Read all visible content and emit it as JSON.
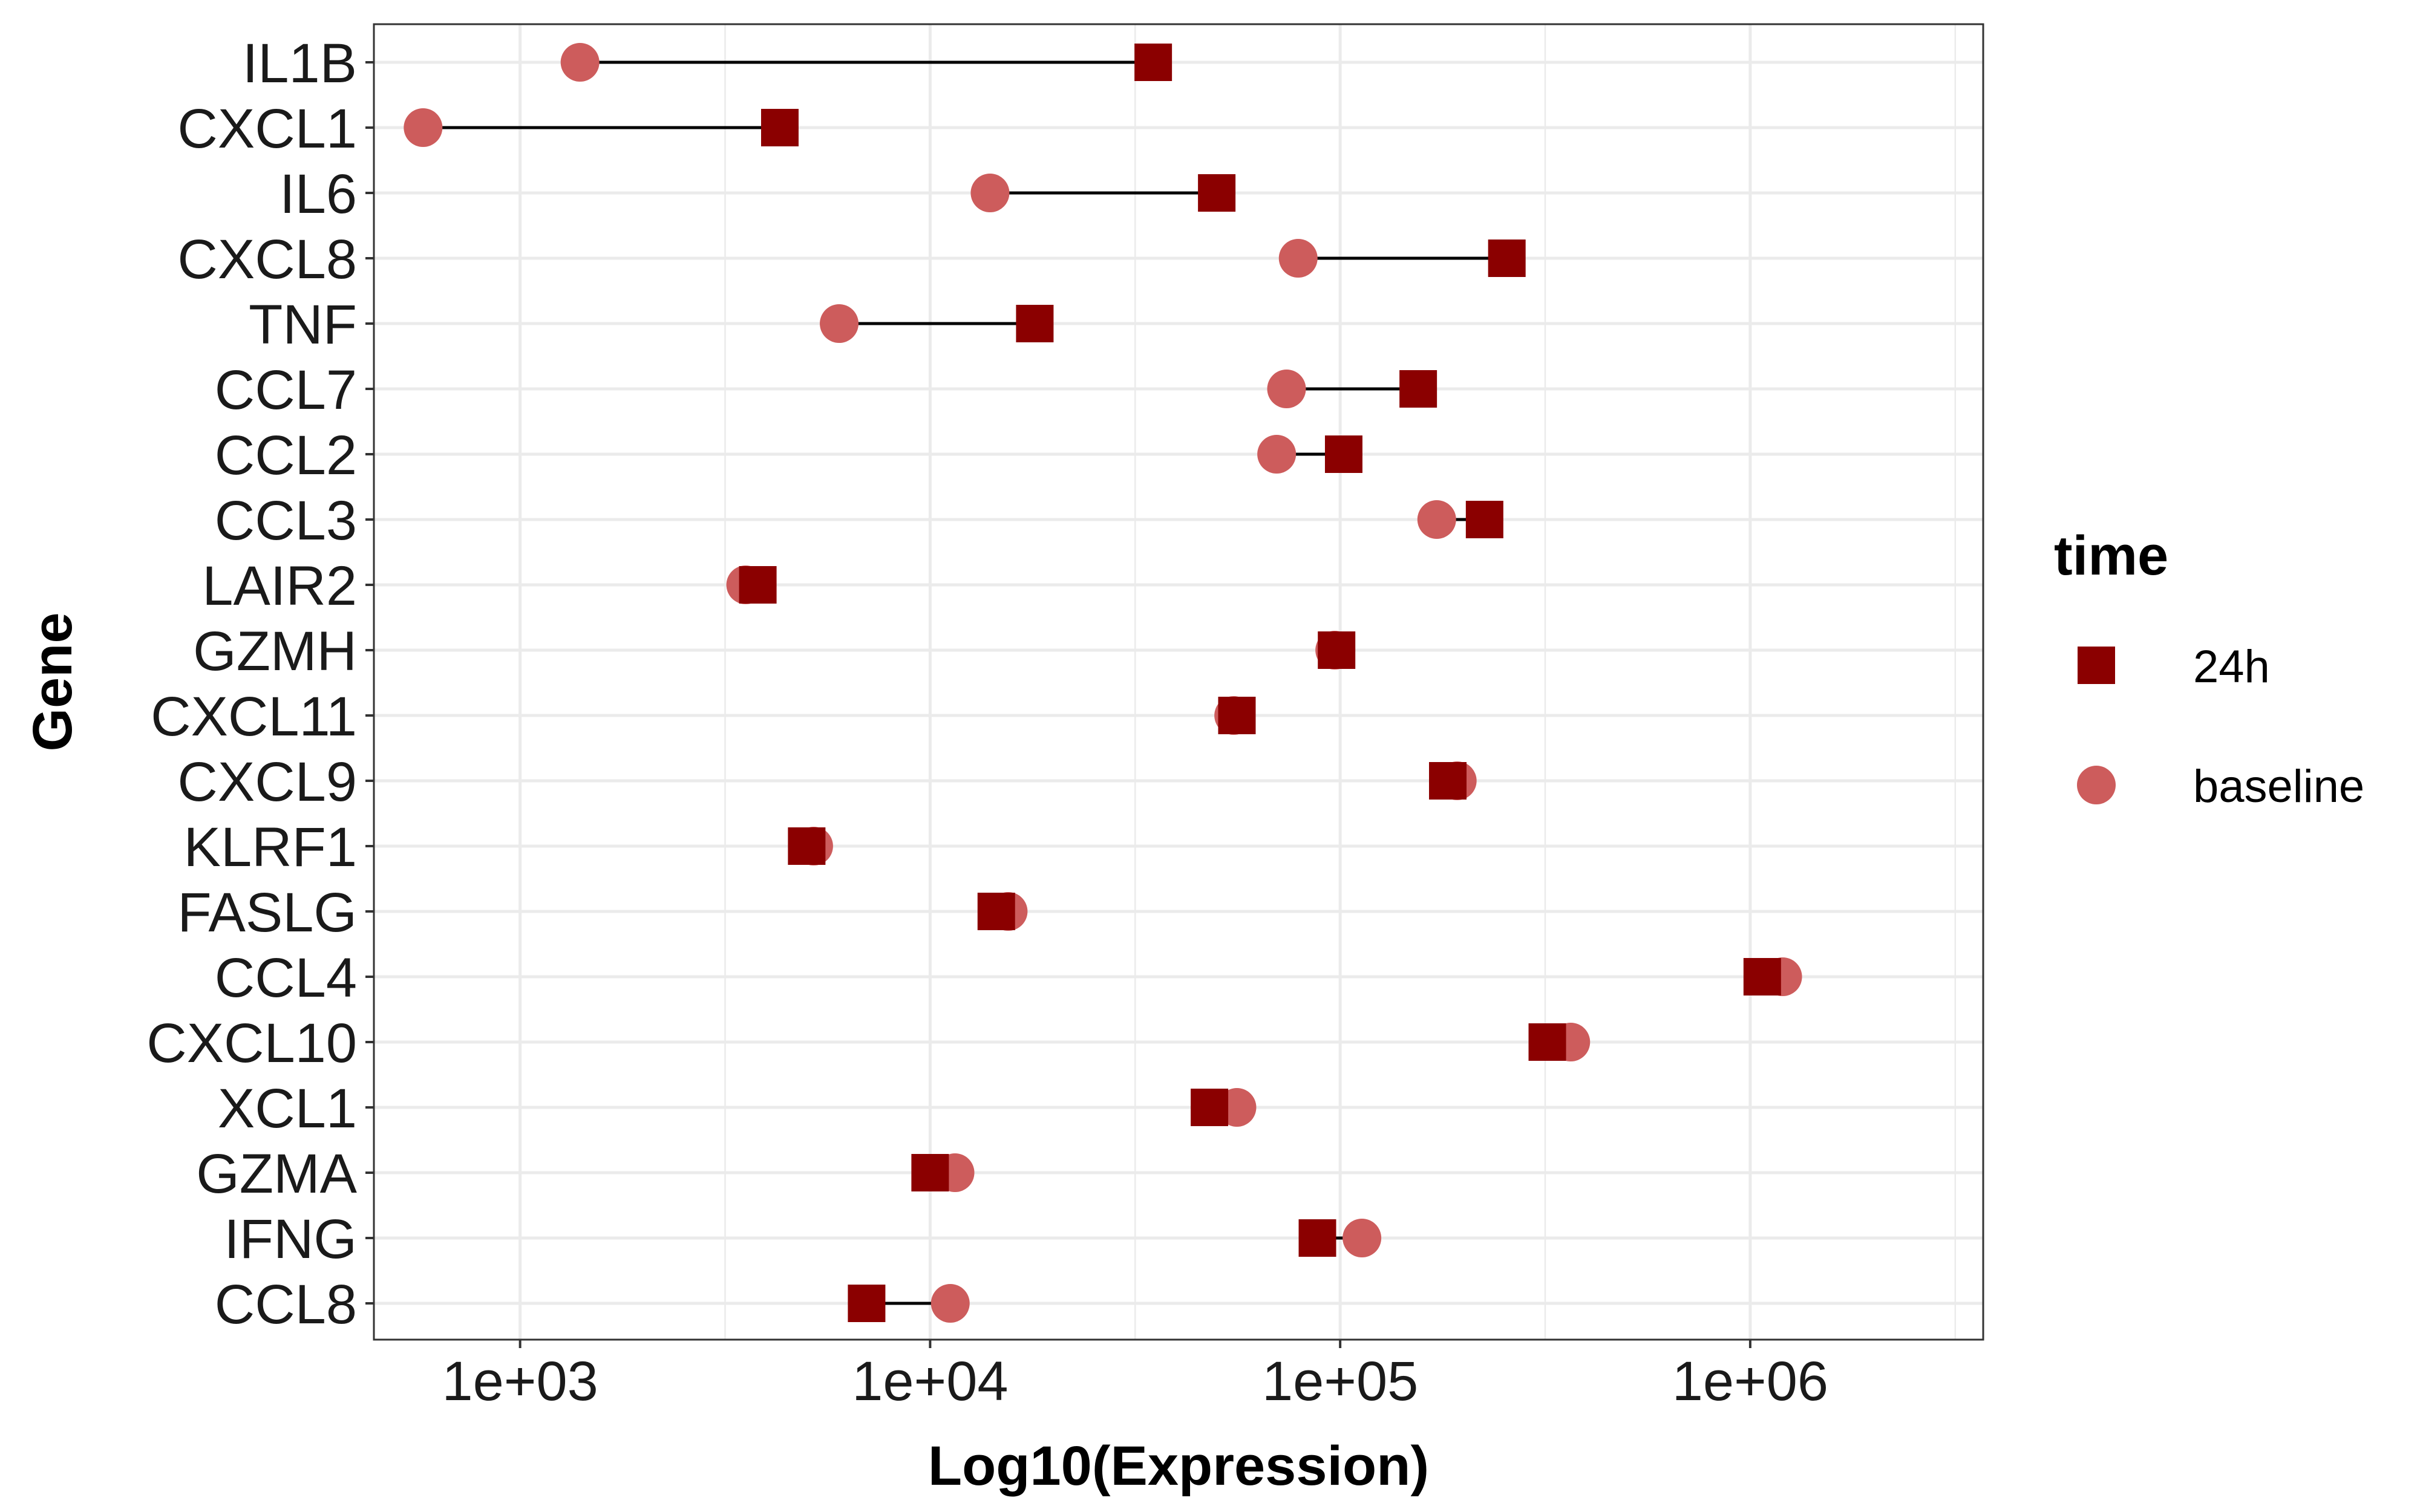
{
  "chart_data": {
    "type": "dumbbell",
    "xlabel": "Log10(Expression)",
    "ylabel": "Gene",
    "x_scale": "log10",
    "xlim": [
      440,
      3700000
    ],
    "x_ticks": [
      1000,
      10000,
      100000,
      1000000
    ],
    "x_tick_labels": [
      "1e+03",
      "1e+04",
      "1e+05",
      "1e+06"
    ],
    "grid": true,
    "legend": {
      "title": "time",
      "placement": "right",
      "entries": [
        {
          "label": "24h",
          "shape": "square",
          "color": "#8B0000"
        },
        {
          "label": "baseline",
          "shape": "circle",
          "color": "#CD5C5C"
        }
      ]
    },
    "categories": [
      "IL1B",
      "CXCL1",
      "IL6",
      "CXCL8",
      "TNF",
      "CCL7",
      "CCL2",
      "CCL3",
      "LAIR2",
      "GZMH",
      "CXCL11",
      "CXCL9",
      "KLRF1",
      "FASLG",
      "CCL4",
      "CXCL10",
      "XCL1",
      "GZMA",
      "IFNG",
      "CCL8"
    ],
    "series": [
      {
        "name": "24h",
        "values": [
          35000,
          4300,
          50000,
          255000,
          18000,
          155000,
          102000,
          225000,
          3800,
          98000,
          56000,
          183000,
          5000,
          14500,
          1070000,
          320000,
          48000,
          10000,
          88000,
          7000
        ]
      },
      {
        "name": "baseline",
        "values": [
          1400,
          580,
          14000,
          79000,
          6000,
          74000,
          70000,
          172000,
          3550,
          97000,
          55000,
          193000,
          5200,
          15500,
          1200000,
          365000,
          56000,
          11500,
          113000,
          11200
        ]
      }
    ],
    "colors": {
      "24h": "#8B0000",
      "baseline": "#CD5C5C",
      "connector": "#000000",
      "grid": "#EBEBEB",
      "panel_border": "#333333"
    }
  }
}
